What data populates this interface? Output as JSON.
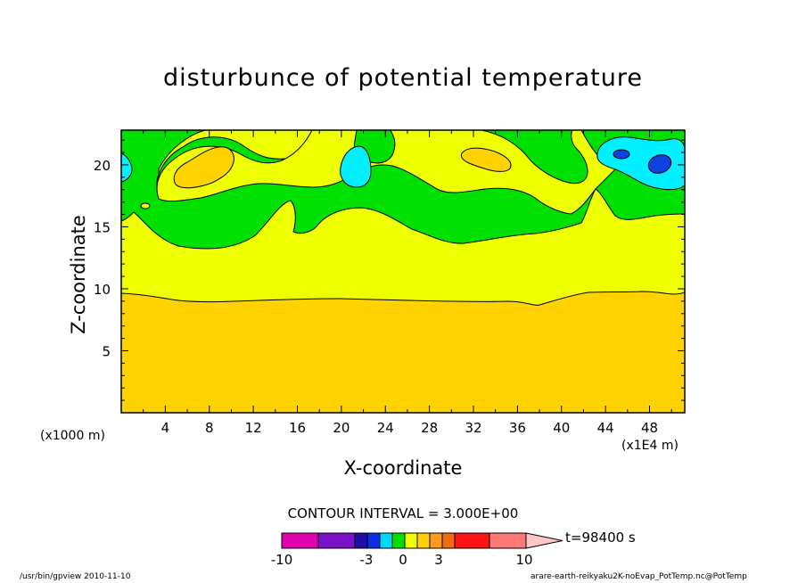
{
  "chart_data": {
    "type": "contour",
    "title": "disturbunce of potential temperature",
    "xlabel": "X-coordinate",
    "ylabel": "Z-coordinate",
    "x_unit_label": "(x1000 m)",
    "x_scale_label": "(x1E4 m)",
    "x_ticks": [
      "4",
      "8",
      "12",
      "16",
      "20",
      "24",
      "28",
      "32",
      "36",
      "40",
      "44",
      "48"
    ],
    "y_ticks": [
      "5",
      "10",
      "15",
      "20"
    ],
    "xlim": [
      0,
      51.2
    ],
    "ylim": [
      0,
      22.8
    ],
    "contour_interval_label": "CONTOUR INTERVAL = 3.000E+00",
    "time_label": "t=98400 s",
    "colorbar": {
      "tick_labels": [
        "-10",
        "-3",
        "0",
        "3",
        "10"
      ],
      "colors": [
        "#e000b0",
        "#7a10c8",
        "#1c10a8",
        "#0a2ee8",
        "#00d8f8",
        "#00e000",
        "#eeff00",
        "#ffd200",
        "#ff9a1e",
        "#f06a10",
        "#ff1414",
        "#ff7878",
        "#ffc8c8"
      ]
    },
    "fields": {
      "lowest": "#ffd200",
      "level_2": "#eeff00",
      "level_3": "#00e000",
      "level_4": "#00f0ff",
      "level_5": "#1040e0",
      "warm_patches": "#ffd200"
    }
  },
  "footer": {
    "left": "/usr/bin/gpview   2010-11-10",
    "right": "arare-earth-reikyaku2K-noEvap_PotTemp.nc@PotTemp"
  }
}
